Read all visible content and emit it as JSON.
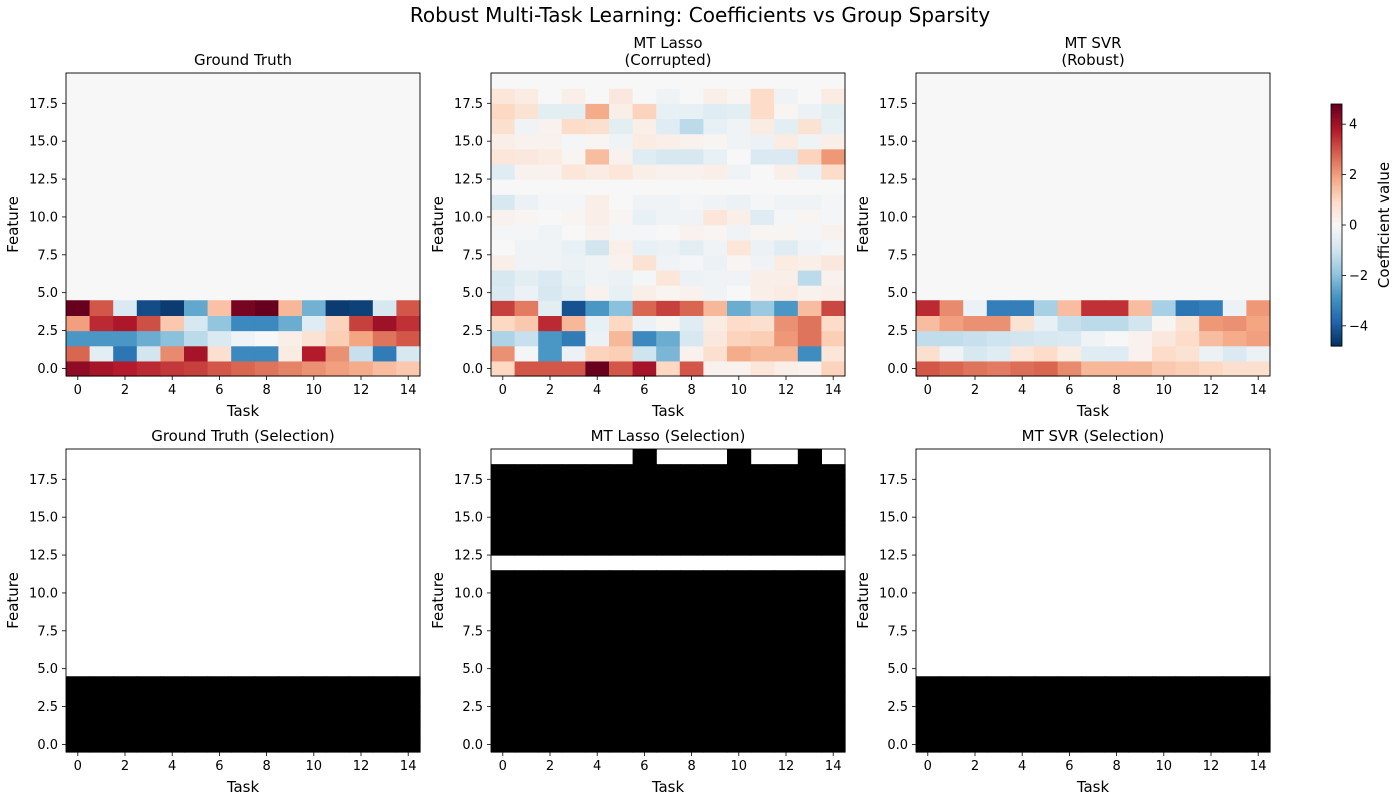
{
  "figure": {
    "title": "Robust Multi-Task Learning: Coefficients vs Group Sparsity",
    "colorbar_label": "Coefficient value",
    "colorbar_ticks": [
      -4,
      -2,
      0,
      2,
      4
    ],
    "colormap": "RdBu_r",
    "selection_colors": {
      "selected": "#000000",
      "not_selected": "#ffffff"
    }
  },
  "chart_data": [
    {
      "type": "heatmap",
      "title": "Ground Truth",
      "xlabel": "Task",
      "ylabel": "Feature",
      "xticks": [
        0,
        2,
        4,
        6,
        8,
        10,
        12,
        14
      ],
      "yticks": [
        0.0,
        2.5,
        5.0,
        7.5,
        10.0,
        12.5,
        15.0,
        17.5
      ],
      "n_tasks": 15,
      "n_features": 20,
      "value_range": [
        -4.8,
        4.8
      ],
      "rows_note": "rows indexed by feature 0..4; features 5..19 are 0",
      "values": [
        [
          4.3,
          4.0,
          3.8,
          3.6,
          3.4,
          3.3,
          3.0,
          2.8,
          2.6,
          2.4,
          2.2,
          2.0,
          1.8,
          1.5,
          1.3
        ],
        [
          2.8,
          -0.5,
          -3.5,
          -0.9,
          2.3,
          4.0,
          0.8,
          -3.1,
          -3.1,
          0.4,
          3.8,
          2.2,
          -1.1,
          -3.4,
          -0.8
        ],
        [
          -2.8,
          -2.8,
          -2.8,
          -2.4,
          -2.0,
          -1.3,
          -0.7,
          -0.2,
          0.0,
          0.3,
          0.7,
          1.2,
          1.9,
          2.6,
          3.0
        ],
        [
          2.0,
          3.6,
          3.9,
          3.1,
          1.3,
          -0.8,
          -1.9,
          -3.1,
          -3.1,
          -2.4,
          -0.6,
          1.1,
          3.3,
          4.1,
          3.5
        ],
        [
          4.8,
          3.0,
          -0.7,
          -4.3,
          -4.6,
          -2.5,
          1.4,
          4.6,
          4.8,
          1.6,
          -2.3,
          -4.6,
          -4.5,
          -0.8,
          3.0
        ]
      ]
    },
    {
      "type": "heatmap",
      "title": "MT Lasso\n(Corrupted)",
      "xlabel": "Task",
      "ylabel": "Feature",
      "xticks": [
        0,
        2,
        4,
        6,
        8,
        10,
        12,
        14
      ],
      "yticks": [
        0.0,
        2.5,
        5.0,
        7.5,
        10.0,
        12.5,
        15.0,
        17.5
      ],
      "n_tasks": 15,
      "n_features": 20,
      "value_range": [
        -4.8,
        4.8
      ],
      "values": [
        [
          1.0,
          3.0,
          3.0,
          3.0,
          4.8,
          3.0,
          4.0,
          1.0,
          3.0,
          0.2,
          0.2,
          0.6,
          0.3,
          0.2,
          1.1
        ],
        [
          2.2,
          -0.1,
          -2.8,
          -0.3,
          1.1,
          1.2,
          -1.0,
          -2.2,
          0.2,
          0.8,
          1.8,
          1.6,
          1.6,
          -3.0,
          0.6
        ],
        [
          -1.5,
          -1.1,
          -2.8,
          -3.4,
          -0.3,
          1.6,
          -3.1,
          -2.4,
          -0.8,
          0.5,
          1.1,
          1.2,
          2.1,
          2.6,
          1.2
        ],
        [
          1.0,
          1.3,
          3.6,
          1.6,
          -0.4,
          1.0,
          -0.3,
          0.1,
          -0.6,
          0.4,
          0.9,
          0.8,
          2.2,
          2.6,
          0.9
        ],
        [
          3.3,
          2.5,
          -0.5,
          -4.2,
          -2.8,
          -2.0,
          2.8,
          3.3,
          2.8,
          1.6,
          -2.4,
          -1.8,
          -2.8,
          1.5,
          3.2
        ],
        [
          -0.7,
          -0.3,
          -0.8,
          -0.5,
          0.2,
          -0.4,
          0.3,
          0.1,
          0.2,
          -0.2,
          0.0,
          0.3,
          0.4,
          0.2,
          0.3
        ],
        [
          -0.8,
          -0.5,
          -0.7,
          -0.4,
          -0.2,
          -0.3,
          -0.1,
          0.6,
          -0.3,
          -0.2,
          -0.2,
          0.3,
          0.3,
          -1.3,
          0.2
        ],
        [
          0.3,
          -0.2,
          -0.2,
          -0.3,
          -0.2,
          0.2,
          0.7,
          -0.2,
          -0.1,
          -0.3,
          0.1,
          -0.2,
          0.4,
          0.3,
          0.5
        ],
        [
          0.0,
          -0.2,
          -0.2,
          -0.4,
          -0.9,
          0.3,
          -0.4,
          -0.3,
          -0.5,
          -0.2,
          0.6,
          -0.3,
          -0.6,
          -0.2,
          -0.1
        ],
        [
          -0.1,
          -0.1,
          -0.2,
          0.0,
          0.2,
          -0.1,
          -0.1,
          0.0,
          0.2,
          0.1,
          -0.2,
          0.1,
          0.1,
          -0.1,
          0.2
        ],
        [
          0.2,
          0.1,
          0.0,
          0.1,
          0.3,
          0.1,
          -0.4,
          -0.2,
          -0.2,
          0.6,
          0.3,
          -0.6,
          -0.1,
          0.1,
          -0.1
        ],
        [
          -0.8,
          -0.3,
          -0.1,
          -0.1,
          0.3,
          0.0,
          -0.2,
          -0.2,
          -0.1,
          -0.2,
          -0.3,
          -0.1,
          -0.2,
          -0.2,
          -0.1
        ],
        [
          0.0,
          0.0,
          0.0,
          0.0,
          0.0,
          0.0,
          0.0,
          0.0,
          0.0,
          0.0,
          0.0,
          0.0,
          0.0,
          0.0,
          0.0
        ],
        [
          -0.6,
          0.2,
          0.2,
          0.6,
          0.4,
          0.6,
          0.3,
          0.2,
          0.2,
          0.3,
          -0.2,
          0.0,
          0.3,
          -0.3,
          0.9
        ],
        [
          0.6,
          0.5,
          0.4,
          0.1,
          1.5,
          0.2,
          -0.6,
          -0.8,
          -0.8,
          -0.4,
          0.0,
          -0.7,
          -0.7,
          1.1,
          2.1
        ],
        [
          0.3,
          0.2,
          0.2,
          -0.1,
          0.1,
          -0.2,
          0.4,
          0.3,
          0.2,
          0.1,
          -0.2,
          -0.3,
          0.4,
          -0.2,
          0.3
        ],
        [
          0.8,
          -0.2,
          0.2,
          0.9,
          0.8,
          -0.5,
          0.3,
          -0.6,
          -1.3,
          -0.4,
          -0.2,
          0.4,
          -0.5,
          0.7,
          -0.4
        ],
        [
          1.0,
          0.7,
          -0.5,
          -0.5,
          1.8,
          0.3,
          1.1,
          -0.4,
          -0.4,
          -0.6,
          -0.5,
          0.9,
          0.1,
          -0.3,
          -0.5
        ],
        [
          0.6,
          0.4,
          0.0,
          0.3,
          0.0,
          0.5,
          0.0,
          -0.2,
          0.0,
          0.3,
          0.1,
          0.9,
          -0.2,
          0.0,
          0.4
        ],
        [
          0.0,
          0.0,
          0.0,
          0.0,
          0.0,
          0.0,
          0.0,
          0.0,
          0.0,
          0.0,
          0.0,
          0.0,
          0.0,
          0.0,
          0.0
        ]
      ]
    },
    {
      "type": "heatmap",
      "title": "MT SVR\n(Robust)",
      "xlabel": "Task",
      "ylabel": "Feature",
      "xticks": [
        0,
        2,
        4,
        6,
        8,
        10,
        12,
        14
      ],
      "yticks": [
        0.0,
        2.5,
        5.0,
        7.5,
        10.0,
        12.5,
        15.0,
        17.5
      ],
      "n_tasks": 15,
      "n_features": 20,
      "value_range": [
        -4.8,
        4.8
      ],
      "rows_note": "rows indexed by feature 0..4; features 5..19 are 0",
      "values": [
        [
          3.0,
          2.8,
          2.6,
          2.5,
          2.7,
          2.8,
          2.3,
          1.6,
          1.6,
          1.6,
          1.3,
          1.2,
          1.0,
          0.8,
          0.8
        ],
        [
          0.8,
          -0.2,
          -0.8,
          -0.6,
          0.6,
          0.9,
          0.4,
          -0.6,
          -0.6,
          0.2,
          0.9,
          0.7,
          -0.3,
          -0.7,
          -0.3
        ],
        [
          -1.2,
          -1.2,
          -1.1,
          -1.0,
          -0.9,
          -0.8,
          -0.7,
          -0.2,
          0.0,
          0.2,
          0.5,
          0.9,
          1.5,
          1.8,
          2.0
        ],
        [
          1.5,
          2.0,
          2.2,
          2.2,
          0.7,
          -0.4,
          -1.1,
          -1.3,
          -1.3,
          -0.9,
          0.1,
          0.7,
          2.1,
          2.2,
          1.9
        ],
        [
          3.6,
          2.3,
          -0.3,
          -3.3,
          -3.3,
          -1.6,
          1.5,
          3.5,
          3.5,
          1.5,
          -1.6,
          -3.5,
          -3.3,
          -0.3,
          2.1
        ]
      ]
    },
    {
      "type": "heatmap",
      "title": "Ground Truth (Selection)",
      "xlabel": "Task",
      "ylabel": "Feature",
      "xticks": [
        0,
        2,
        4,
        6,
        8,
        10,
        12,
        14
      ],
      "yticks": [
        0.0,
        2.5,
        5.0,
        7.5,
        10.0,
        12.5,
        15.0,
        17.5
      ],
      "n_tasks": 15,
      "n_features": 20,
      "binary": true,
      "rows_note": "features 0..4 selected (black) in every task",
      "selected_features": [
        0,
        1,
        2,
        3,
        4
      ],
      "selected_cells": []
    },
    {
      "type": "heatmap",
      "title": "MT Lasso (Selection)",
      "xlabel": "Task",
      "ylabel": "Feature",
      "xticks": [
        0,
        2,
        4,
        6,
        8,
        10,
        12,
        14
      ],
      "yticks": [
        0.0,
        2.5,
        5.0,
        7.5,
        10.0,
        12.5,
        15.0,
        17.5
      ],
      "n_tasks": 15,
      "n_features": 20,
      "binary": true,
      "selected_features": [
        0,
        1,
        2,
        3,
        4,
        5,
        6,
        7,
        8,
        9,
        10,
        11,
        13,
        14,
        15,
        16,
        17,
        18
      ],
      "selected_cells": [
        [
          6,
          19
        ],
        [
          10,
          19
        ],
        [
          13,
          19
        ]
      ]
    },
    {
      "type": "heatmap",
      "title": "MT SVR (Selection)",
      "xlabel": "Task",
      "ylabel": "Feature",
      "xticks": [
        0,
        2,
        4,
        6,
        8,
        10,
        12,
        14
      ],
      "yticks": [
        0.0,
        2.5,
        5.0,
        7.5,
        10.0,
        12.5,
        15.0,
        17.5
      ],
      "n_tasks": 15,
      "n_features": 20,
      "binary": true,
      "selected_features": [
        0,
        1,
        2,
        3,
        4
      ],
      "selected_cells": []
    }
  ]
}
